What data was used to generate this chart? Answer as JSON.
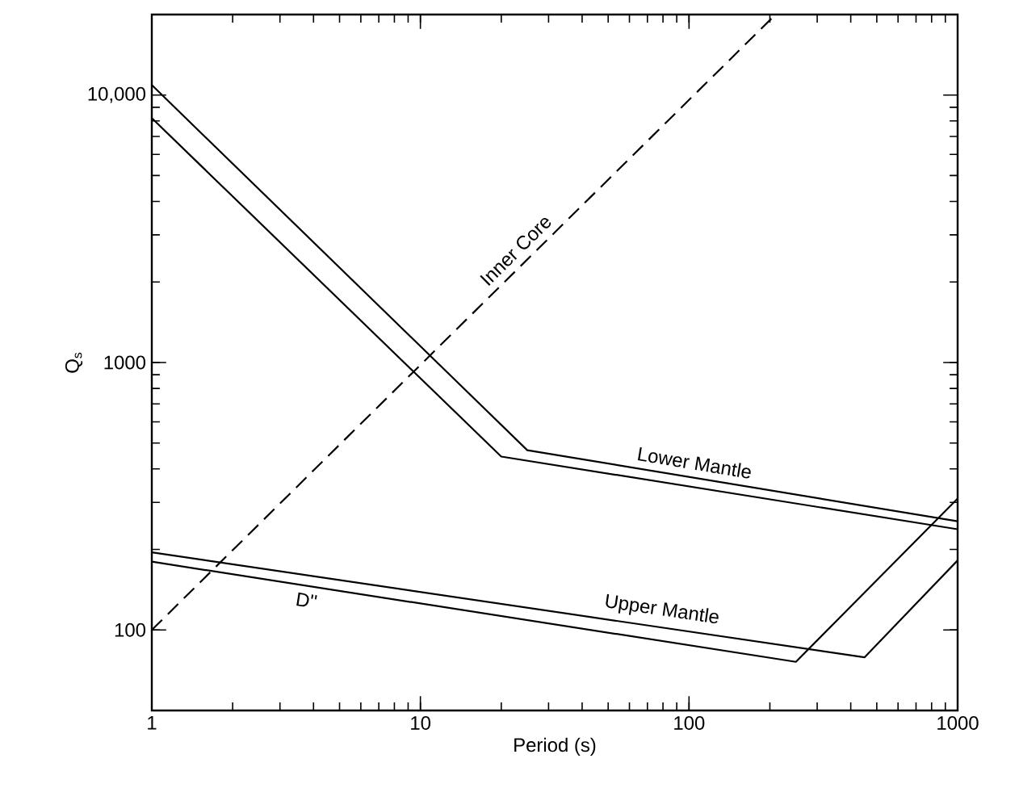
{
  "chart_data": {
    "type": "line",
    "xlabel": "Period (s)",
    "ylabel": "Q$_{s}$",
    "log": "xy",
    "xlim": [
      1,
      1000
    ],
    "ylim": [
      50,
      20000
    ],
    "xticks": [
      1,
      10,
      100,
      1000
    ],
    "yticks": [
      100,
      1000,
      {
        "value": 10000,
        "label": "10,000"
      }
    ],
    "grid": false,
    "marker": "none",
    "line_style": "solid",
    "series": [
      {
        "name": "Lower Mantle",
        "color": "#000000",
        "x": [
          1,
          25,
          1000
        ],
        "values": [
          10900,
          470,
          255
        ]
      },
      {
        "color": "#000000",
        "x": [
          1,
          20,
          1000
        ],
        "values": [
          8200,
          445,
          238
        ]
      },
      {
        "name": "Upper Mantle",
        "color": "#000000",
        "x": [
          1,
          450,
          1000
        ],
        "values": [
          195,
          79,
          182
        ]
      },
      {
        "name": "D''",
        "color": "#000000",
        "x": [
          1,
          250,
          1000
        ],
        "values": [
          180,
          76,
          310
        ]
      },
      {
        "name": "Inner Core",
        "color": "#000000",
        "line_style": "dashed",
        "x": [
          1,
          210
        ],
        "values": [
          100,
          20000
        ]
      }
    ]
  }
}
